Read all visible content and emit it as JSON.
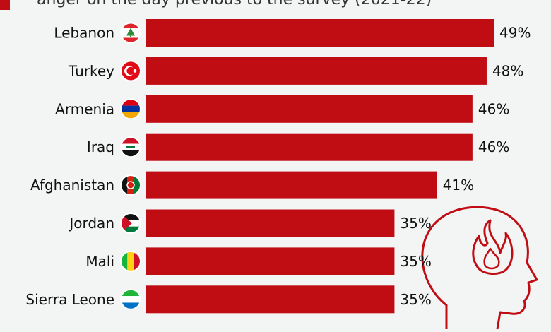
{
  "subtitle": "anger on the day previous to the survey (2021-22)",
  "colors": {
    "bar": "#c00d14",
    "background": "#f3f4f4",
    "head_stroke": "#c00d14"
  },
  "chart_data": {
    "type": "bar",
    "orientation": "horizontal",
    "categories": [
      "Lebanon",
      "Turkey",
      "Armenia",
      "Iraq",
      "Afghanistan",
      "Jordan",
      "Mali",
      "Sierra Leone"
    ],
    "values": [
      49,
      48,
      46,
      46,
      41,
      35,
      35,
      35
    ],
    "value_labels": [
      "49%",
      "48%",
      "46%",
      "46%",
      "41%",
      "35%",
      "35%",
      "35%"
    ],
    "flag_icons": [
      "flag-lebanon-icon",
      "flag-turkey-icon",
      "flag-armenia-icon",
      "flag-iraq-icon",
      "flag-afghanistan-icon",
      "flag-jordan-icon",
      "flag-mali-icon",
      "flag-sierra-leone-icon"
    ],
    "xlim": [
      0,
      49
    ],
    "grid": false,
    "legend": "top-left",
    "decoration_icon": "angry-head-flame-icon"
  }
}
